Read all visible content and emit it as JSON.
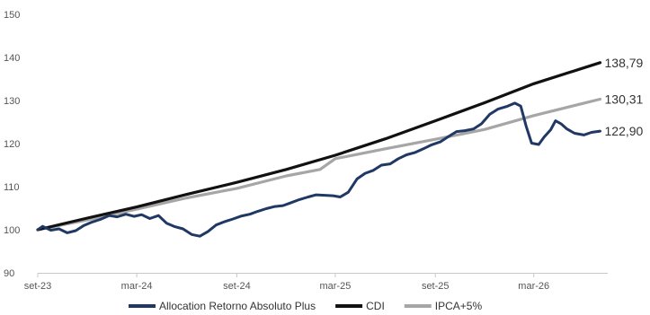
{
  "chart_data": {
    "type": "line",
    "title": "",
    "xlabel": "",
    "ylabel": "",
    "ylim": [
      90,
      150
    ],
    "yticks": [
      90,
      100,
      110,
      120,
      130,
      140,
      150
    ],
    "xlim": [
      "2023-09-01",
      "2026-07-15"
    ],
    "xticks": [
      {
        "date": "2023-09-01",
        "label": "set-23"
      },
      {
        "date": "2024-03-01",
        "label": "mar-24"
      },
      {
        "date": "2024-09-01",
        "label": "set-24"
      },
      {
        "date": "2025-03-01",
        "label": "mar-25"
      },
      {
        "date": "2025-09-01",
        "label": "set-25"
      },
      {
        "date": "2026-03-01",
        "label": "mar-26"
      }
    ],
    "grid": false,
    "legend_position": "bottom",
    "series": [
      {
        "name": "Allocation Retorno Absoluto Plus",
        "color": "#1f3864",
        "end_label": "122,90",
        "points": [
          [
            "2023-09-01",
            100.0
          ],
          [
            "2023-09-10",
            100.8
          ],
          [
            "2023-09-25",
            99.9
          ],
          [
            "2023-10-10",
            100.2
          ],
          [
            "2023-10-25",
            99.3
          ],
          [
            "2023-11-10",
            99.8
          ],
          [
            "2023-11-25",
            101.0
          ],
          [
            "2023-12-10",
            101.8
          ],
          [
            "2023-12-25",
            102.4
          ],
          [
            "2024-01-10",
            103.3
          ],
          [
            "2024-01-25",
            103.0
          ],
          [
            "2024-02-10",
            103.6
          ],
          [
            "2024-02-25",
            103.1
          ],
          [
            "2024-03-10",
            103.5
          ],
          [
            "2024-03-25",
            102.6
          ],
          [
            "2024-04-10",
            103.3
          ],
          [
            "2024-04-25",
            101.5
          ],
          [
            "2024-05-10",
            100.7
          ],
          [
            "2024-05-25",
            100.2
          ],
          [
            "2024-06-10",
            98.9
          ],
          [
            "2024-06-25",
            98.5
          ],
          [
            "2024-07-10",
            99.6
          ],
          [
            "2024-07-25",
            101.1
          ],
          [
            "2024-08-10",
            101.9
          ],
          [
            "2024-08-25",
            102.5
          ],
          [
            "2024-09-10",
            103.2
          ],
          [
            "2024-09-25",
            103.6
          ],
          [
            "2024-10-10",
            104.3
          ],
          [
            "2024-10-25",
            104.9
          ],
          [
            "2024-11-10",
            105.4
          ],
          [
            "2024-11-25",
            105.6
          ],
          [
            "2024-12-10",
            106.3
          ],
          [
            "2024-12-25",
            107.0
          ],
          [
            "2025-01-10",
            107.6
          ],
          [
            "2025-01-25",
            108.1
          ],
          [
            "2025-02-10",
            108.0
          ],
          [
            "2025-02-25",
            107.9
          ],
          [
            "2025-03-10",
            107.6
          ],
          [
            "2025-03-25",
            108.7
          ],
          [
            "2025-04-10",
            111.8
          ],
          [
            "2025-04-25",
            113.1
          ],
          [
            "2025-05-10",
            113.8
          ],
          [
            "2025-05-25",
            115.0
          ],
          [
            "2025-06-10",
            115.3
          ],
          [
            "2025-06-25",
            116.5
          ],
          [
            "2025-07-10",
            117.4
          ],
          [
            "2025-07-25",
            117.9
          ],
          [
            "2025-08-10",
            118.8
          ],
          [
            "2025-08-25",
            119.7
          ],
          [
            "2025-09-10",
            120.4
          ],
          [
            "2025-09-25",
            121.6
          ],
          [
            "2025-10-10",
            122.8
          ],
          [
            "2025-10-25",
            123.0
          ],
          [
            "2025-11-10",
            123.4
          ],
          [
            "2025-11-25",
            124.6
          ],
          [
            "2025-12-10",
            126.8
          ],
          [
            "2025-12-25",
            128.0
          ],
          [
            "2026-01-10",
            128.6
          ],
          [
            "2026-01-25",
            129.4
          ],
          [
            "2026-02-05",
            128.7
          ],
          [
            "2026-02-15",
            124.0
          ],
          [
            "2026-02-25",
            120.1
          ],
          [
            "2026-03-10",
            119.8
          ],
          [
            "2026-03-20",
            121.5
          ],
          [
            "2026-04-01",
            123.2
          ],
          [
            "2026-04-10",
            125.3
          ],
          [
            "2026-04-20",
            124.6
          ],
          [
            "2026-05-01",
            123.4
          ],
          [
            "2026-05-15",
            122.4
          ],
          [
            "2026-06-01",
            122.0
          ],
          [
            "2026-06-15",
            122.6
          ],
          [
            "2026-07-01",
            122.9
          ]
        ]
      },
      {
        "name": "CDI",
        "color": "#111111",
        "end_label": "138,79",
        "points": [
          [
            "2023-09-01",
            100.0
          ],
          [
            "2023-12-01",
            102.7
          ],
          [
            "2024-03-01",
            105.3
          ],
          [
            "2024-06-01",
            108.2
          ],
          [
            "2024-09-01",
            111.0
          ],
          [
            "2024-12-01",
            114.0
          ],
          [
            "2025-03-01",
            117.3
          ],
          [
            "2025-06-01",
            121.1
          ],
          [
            "2025-09-01",
            125.3
          ],
          [
            "2025-12-01",
            129.5
          ],
          [
            "2026-03-01",
            133.9
          ],
          [
            "2026-07-01",
            138.79
          ]
        ]
      },
      {
        "name": "IPCA+5%",
        "color": "#a6a6a6",
        "end_label": "130,31",
        "points": [
          [
            "2023-09-01",
            100.0
          ],
          [
            "2023-12-01",
            102.3
          ],
          [
            "2024-03-01",
            104.8
          ],
          [
            "2024-06-01",
            107.4
          ],
          [
            "2024-09-01",
            109.6
          ],
          [
            "2024-12-01",
            112.5
          ],
          [
            "2025-02-01",
            114.0
          ],
          [
            "2025-03-01",
            116.5
          ],
          [
            "2025-06-01",
            118.8
          ],
          [
            "2025-09-01",
            121.0
          ],
          [
            "2025-12-01",
            123.3
          ],
          [
            "2026-03-01",
            126.5
          ],
          [
            "2026-07-01",
            130.31
          ]
        ]
      }
    ]
  }
}
